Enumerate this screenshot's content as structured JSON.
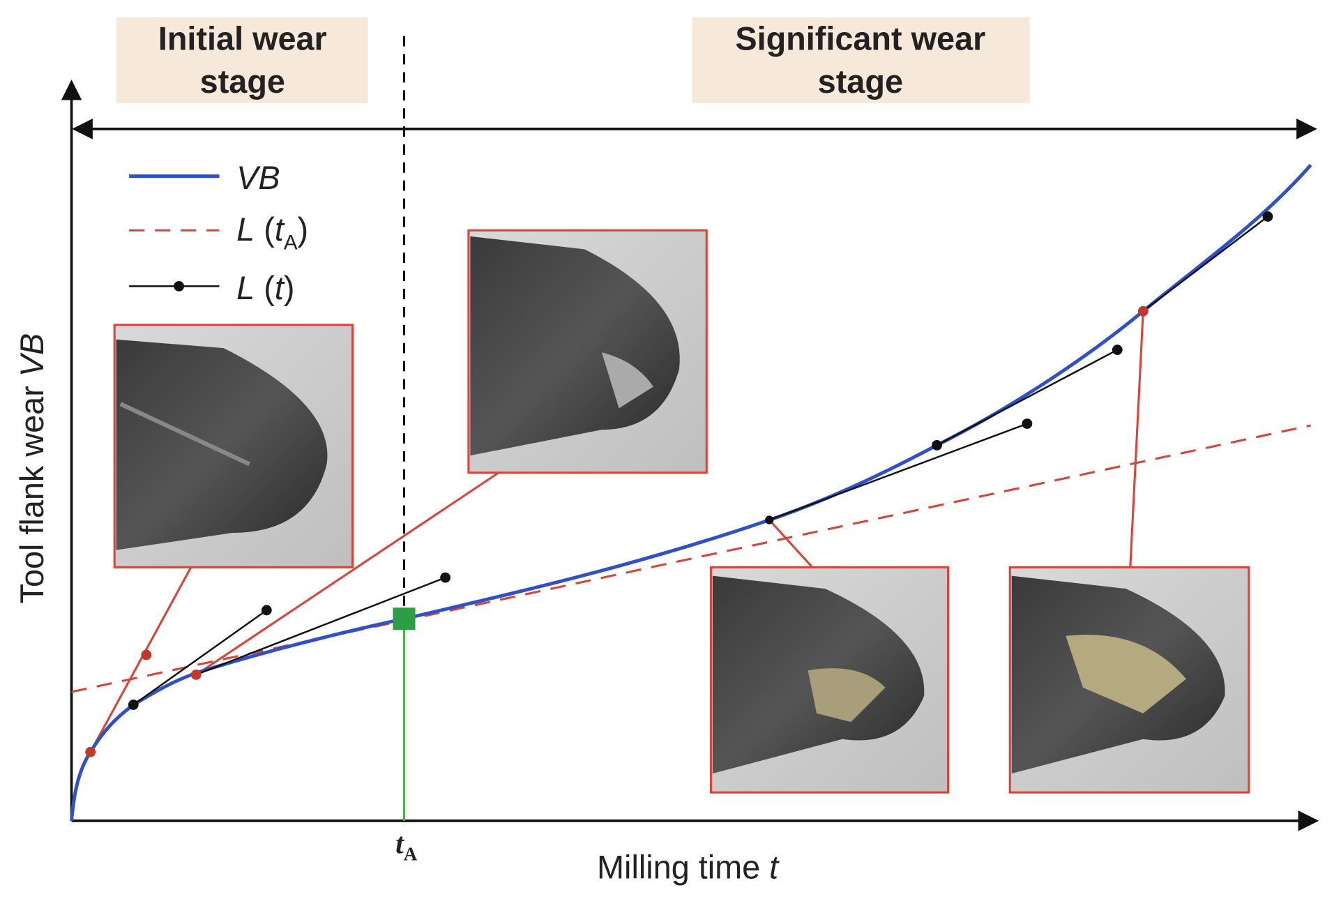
{
  "stages": {
    "initial": "Initial wear stage",
    "significant": "Significant wear stage"
  },
  "legend": {
    "vb": {
      "italic": "VB"
    },
    "l_ta": {
      "italic": "L",
      "plain": " (",
      "italic2": "t",
      "sub": "A",
      "close": ")"
    },
    "l_t": {
      "italic": "L",
      "plain": " (",
      "italic2": "t",
      "close": ")"
    }
  },
  "axes": {
    "y_label": {
      "plain": "Tool flank wear ",
      "italic": "VB"
    },
    "x_label": {
      "plain": "Milling time ",
      "italic": "t"
    },
    "marker": {
      "italic": "t",
      "sub": "A"
    }
  }
}
